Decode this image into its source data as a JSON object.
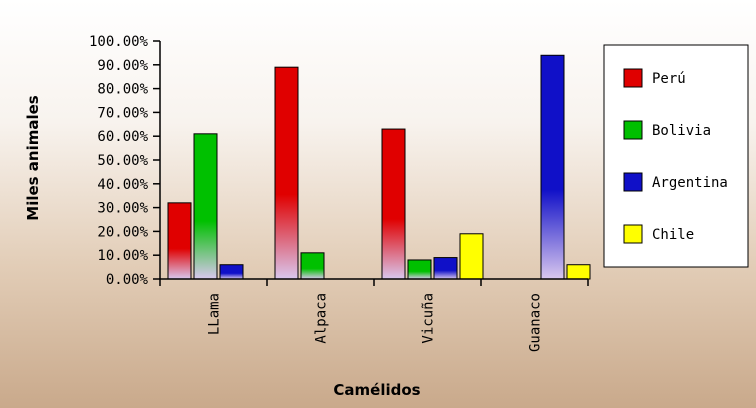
{
  "chart_data": {
    "type": "bar",
    "title": "",
    "xlabel": "Camélidos",
    "ylabel": "Miles animales",
    "ylim": [
      0,
      100
    ],
    "y_ticks": [
      "0.00%",
      "10.00%",
      "20.00%",
      "30.00%",
      "40.00%",
      "50.00%",
      "60.00%",
      "70.00%",
      "80.00%",
      "90.00%",
      "100.00%"
    ],
    "categories": [
      "LLama",
      "Alpaca",
      "Vicuña",
      "Guanaco"
    ],
    "series": [
      {
        "name": "Perú",
        "color": "#e00000",
        "values": [
          32,
          89,
          63,
          0
        ]
      },
      {
        "name": "Bolivia",
        "color": "#00c000",
        "values": [
          61,
          11,
          8,
          0
        ]
      },
      {
        "name": "Argentina",
        "color": "#1010c8",
        "values": [
          6,
          0,
          9,
          94
        ]
      },
      {
        "name": "Chile",
        "color": "#ffff00",
        "values": [
          0,
          0,
          19,
          6
        ]
      }
    ],
    "legend_position": "right",
    "grid": false
  }
}
